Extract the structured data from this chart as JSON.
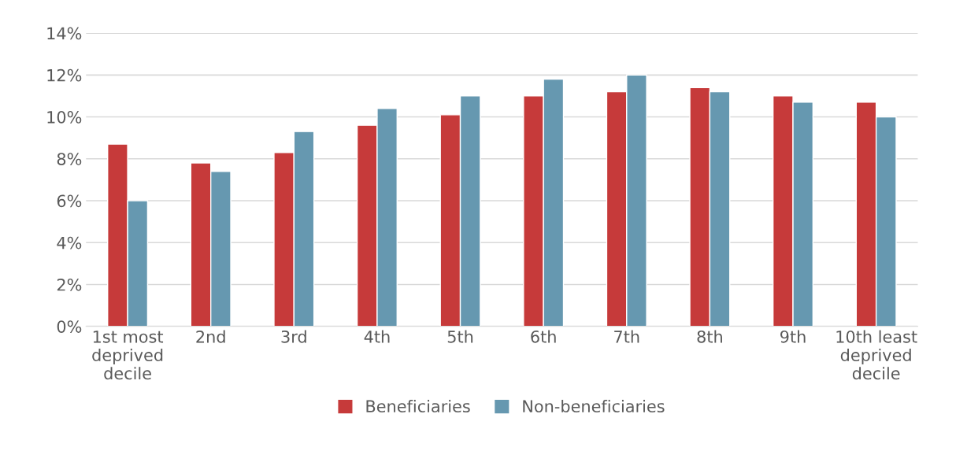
{
  "chart_data": {
    "type": "bar",
    "categories": [
      "1st most deprived decile",
      "2nd",
      "3rd",
      "4th",
      "5th",
      "6th",
      "7th",
      "8th",
      "9th",
      "10th least deprived decile"
    ],
    "series": [
      {
        "name": "Beneficiaries",
        "color": "#c63a3a",
        "values": [
          8.7,
          7.8,
          8.3,
          9.6,
          10.1,
          11.0,
          11.2,
          11.4,
          11.0,
          10.7
        ]
      },
      {
        "name": "Non-beneficiaries",
        "color": "#6698b0",
        "values": [
          6.0,
          7.4,
          9.3,
          10.4,
          11.0,
          11.8,
          12.0,
          11.2,
          10.7,
          10.0
        ]
      }
    ],
    "ylim": [
      0,
      14
    ],
    "yticks": [
      {
        "value": 0,
        "label": "0%"
      },
      {
        "value": 2,
        "label": "2%"
      },
      {
        "value": 4,
        "label": "4%"
      },
      {
        "value": 6,
        "label": "6%"
      },
      {
        "value": 8,
        "label": "8%"
      },
      {
        "value": 10,
        "label": "10%"
      },
      {
        "value": 12,
        "label": "12%"
      },
      {
        "value": 14,
        "label": "14%"
      }
    ],
    "grid": "y",
    "legend": "bottom"
  }
}
